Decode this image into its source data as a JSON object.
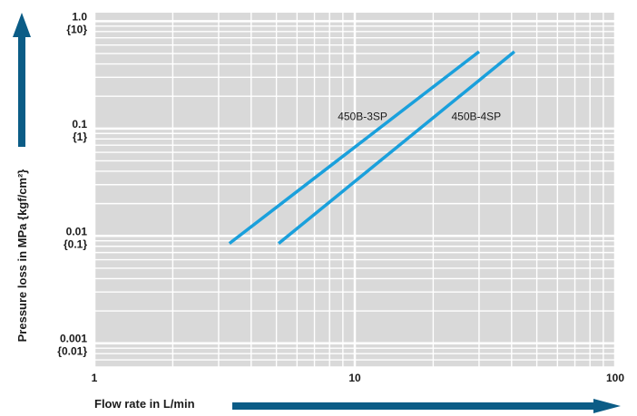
{
  "chart_data": {
    "type": "line",
    "x_scale": "log",
    "y_scale": "log",
    "xlim": [
      1,
      100
    ],
    "ylim": [
      0.0006,
      1.2
    ],
    "xlabel": "Flow rate in L/min",
    "ylabel": "Pressure loss in MPa {kgf/cm²}",
    "x_ticks": [
      {
        "value": 1,
        "label": "1"
      },
      {
        "value": 10,
        "label": "10"
      },
      {
        "value": 100,
        "label": "100"
      }
    ],
    "y_ticks": [
      {
        "value": 1.0,
        "label": "1.0",
        "sub": "{10}"
      },
      {
        "value": 0.1,
        "label": "0.1",
        "sub": "{1}"
      },
      {
        "value": 0.01,
        "label": "0.01",
        "sub": "{0.1}"
      },
      {
        "value": 0.001,
        "label": "0.001",
        "sub": "{0.01}"
      }
    ],
    "grid": true,
    "legend": "inline labels",
    "series": [
      {
        "name": "450B-3SP",
        "x": [
          3.3,
          30
        ],
        "y": [
          0.0085,
          0.52
        ],
        "color": "#1aa0dc",
        "label_at": [
          8.6,
          0.12
        ]
      },
      {
        "name": "450B-4SP",
        "x": [
          5.1,
          41
        ],
        "y": [
          0.0085,
          0.52
        ],
        "color": "#1aa0dc",
        "label_at": [
          23.5,
          0.12
        ]
      }
    ],
    "colors": {
      "plot_bg": "#d9d9d9",
      "grid": "#ffffff",
      "arrow": "#0b5c86",
      "line": "#1aa0dc"
    }
  }
}
